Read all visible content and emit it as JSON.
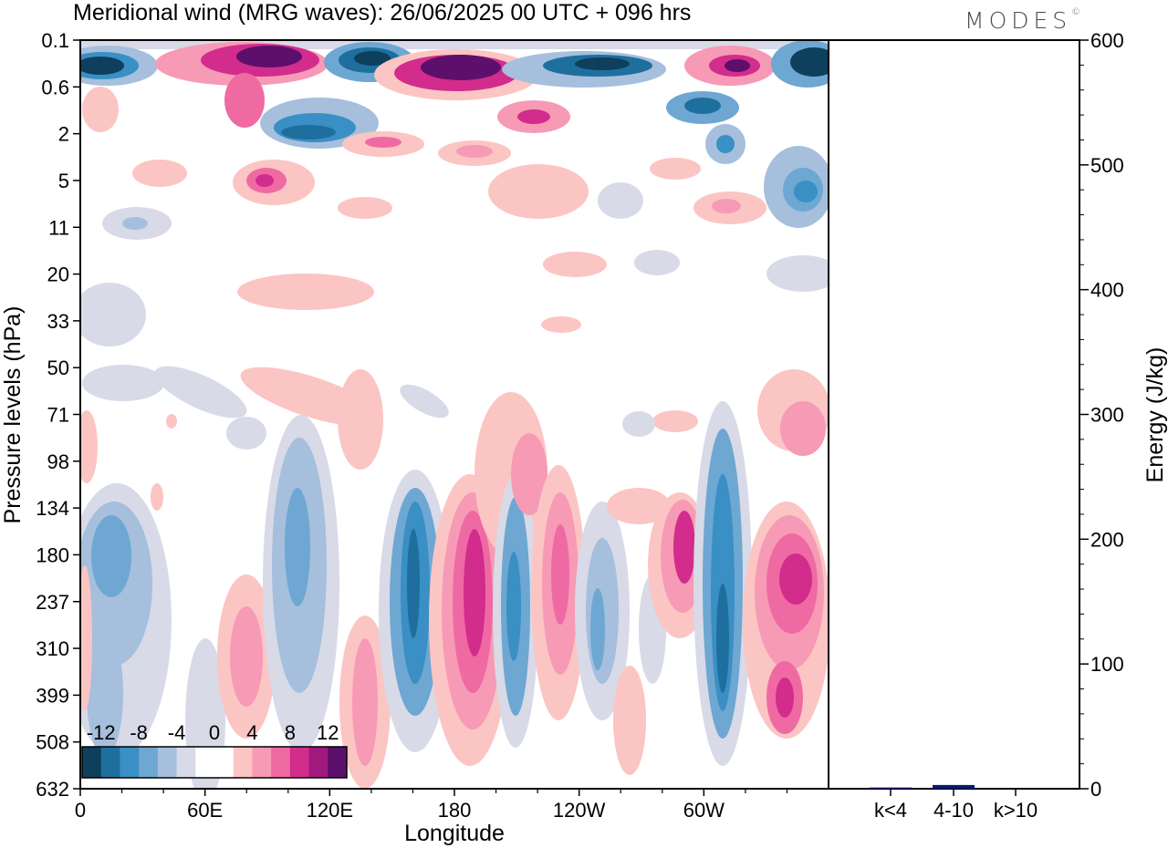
{
  "title": "Meridional wind (MRG waves):  26/06/2025  00 UTC  + 096 hrs",
  "logo_text": "MODES",
  "logo_mark": "©",
  "chart_data": [
    {
      "type": "heatmap",
      "title": "Meridional wind (MRG waves):  26/06/2025  00 UTC  + 096 hrs",
      "xlabel": "Longitude",
      "ylabel": "Pressure levels (hPa)",
      "x_ticks": [
        "0",
        "60E",
        "120E",
        "180",
        "120W",
        "60W"
      ],
      "y_ticks": [
        "0.1",
        "0.6",
        "2",
        "5",
        "11",
        "20",
        "33",
        "50",
        "71",
        "98",
        "134",
        "180",
        "237",
        "310",
        "399",
        "508",
        "632"
      ],
      "colorbar_labels": [
        "-12",
        "-8",
        "-4",
        "0",
        "4",
        "8",
        "12"
      ],
      "colorbar_colors": [
        "#0e3f5c",
        "#1f6f9e",
        "#3a8fc4",
        "#6ea7d2",
        "#a5bfdd",
        "#d8dae8",
        "#ffffff",
        "#ffffff",
        "#fbc5c3",
        "#f79ab5",
        "#ef6aa3",
        "#d22c8d",
        "#a01a7d",
        "#5c0f6b"
      ]
    },
    {
      "type": "bar",
      "categories": [
        "k<4",
        "4-10",
        "k>10"
      ],
      "values": [
        1,
        3,
        0
      ],
      "ylabel": "Energy (J/kg)",
      "ylim": [
        0,
        600
      ],
      "y_ticks": [
        "0",
        "100",
        "200",
        "300",
        "400",
        "500",
        "600"
      ],
      "bar_color": "#0a1a6e"
    }
  ]
}
